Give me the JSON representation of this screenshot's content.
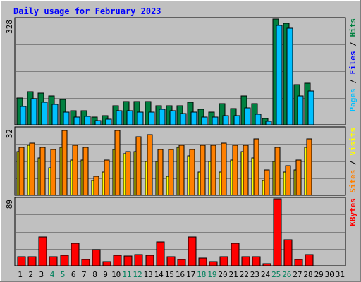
{
  "title": "Daily usage for February 2023",
  "colors": {
    "background": "#c0c0c0",
    "border": "#808080",
    "title": "#0000ff",
    "grid": "#808080",
    "hits": "#008040",
    "files": "#00c0ff",
    "pages": "#00e0ff",
    "visits": "#ffff00",
    "sites": "#ff8000",
    "kbytes": "#ff0000",
    "weekend_label": "#00805c",
    "weekday_label": "#000000"
  },
  "chart_data": [
    {
      "type": "bar",
      "panel": "requests",
      "ymax": 328,
      "ymax_label": "328",
      "right_label_parts": [
        {
          "text": "Pages",
          "color": "#00c0ff"
        },
        {
          "text": " / ",
          "color": "#000000"
        },
        {
          "text": "Files",
          "color": "#0000ff"
        },
        {
          "text": " / ",
          "color": "#000000"
        },
        {
          "text": "Hits",
          "color": "#008040"
        }
      ],
      "categories": [
        "1",
        "2",
        "3",
        "4",
        "5",
        "6",
        "7",
        "8",
        "9",
        "10",
        "11",
        "12",
        "13",
        "14",
        "15",
        "16",
        "17",
        "18",
        "19",
        "20",
        "21",
        "22",
        "23",
        "24",
        "25",
        "26",
        "27",
        "28",
        "29",
        "30",
        "31"
      ],
      "series": [
        {
          "name": "Hits",
          "color": "#008040",
          "values": [
            84,
            102,
            98,
            90,
            78,
            44,
            44,
            24,
            28,
            60,
            72,
            72,
            72,
            60,
            60,
            60,
            70,
            48,
            40,
            66,
            50,
            90,
            66,
            20,
            328,
            314,
            124,
            130,
            0,
            0,
            0
          ]
        },
        {
          "name": "Files",
          "color": "#00c0ff",
          "values": [
            56,
            80,
            70,
            64,
            40,
            24,
            26,
            14,
            18,
            44,
            44,
            40,
            40,
            48,
            44,
            36,
            40,
            24,
            24,
            28,
            28,
            52,
            32,
            12,
            308,
            300,
            90,
            106,
            0,
            0,
            0
          ]
        }
      ]
    },
    {
      "type": "bar",
      "panel": "visitors",
      "ymax": 32,
      "ymax_label": "32",
      "right_label_parts": [
        {
          "text": "Sites",
          "color": "#ff8000"
        },
        {
          "text": " / ",
          "color": "#000000"
        },
        {
          "text": "Visits",
          "color": "#ffff00"
        }
      ],
      "categories": [
        "1",
        "2",
        "3",
        "4",
        "5",
        "6",
        "7",
        "8",
        "9",
        "10",
        "11",
        "12",
        "13",
        "14",
        "15",
        "16",
        "17",
        "18",
        "19",
        "20",
        "21",
        "22",
        "23",
        "24",
        "25",
        "26",
        "27",
        "28",
        "29",
        "30",
        "31"
      ],
      "series": [
        {
          "name": "Visits",
          "color": "#ffff00",
          "values": [
            21,
            24,
            18,
            13,
            23,
            17,
            17,
            7,
            11,
            22,
            20,
            21,
            16,
            16,
            9,
            23,
            19,
            11,
            16,
            11,
            17,
            21,
            18,
            7,
            16,
            11,
            12,
            23,
            0,
            0,
            0
          ]
        },
        {
          "name": "Sites",
          "color": "#ff8000",
          "values": [
            23,
            25,
            23,
            22,
            31,
            24,
            23,
            9,
            17,
            31,
            21,
            28,
            29,
            22,
            22,
            24,
            22,
            24,
            24,
            25,
            24,
            24,
            27,
            12,
            23,
            14,
            17,
            27,
            0,
            0,
            0
          ]
        }
      ]
    },
    {
      "type": "bar",
      "panel": "volume",
      "ymax": 89,
      "ymax_label": "89",
      "right_label_parts": [
        {
          "text": "KBytes",
          "color": "#ff0000"
        }
      ],
      "categories": [
        "1",
        "2",
        "3",
        "4",
        "5",
        "6",
        "7",
        "8",
        "9",
        "10",
        "11",
        "12",
        "13",
        "14",
        "15",
        "16",
        "17",
        "18",
        "19",
        "20",
        "21",
        "22",
        "23",
        "24",
        "25",
        "26",
        "27",
        "28",
        "29",
        "30",
        "31"
      ],
      "series": [
        {
          "name": "KBytes",
          "color": "#ff0000",
          "values": [
            12,
            12,
            38,
            12,
            14,
            30,
            8,
            22,
            6,
            14,
            13,
            15,
            14,
            32,
            12,
            8,
            38,
            10,
            6,
            12,
            30,
            12,
            12,
            3,
            89,
            35,
            8,
            15,
            0,
            0,
            0
          ]
        }
      ]
    }
  ],
  "weekend_days": [
    4,
    5,
    11,
    12,
    18,
    19,
    25,
    26
  ]
}
